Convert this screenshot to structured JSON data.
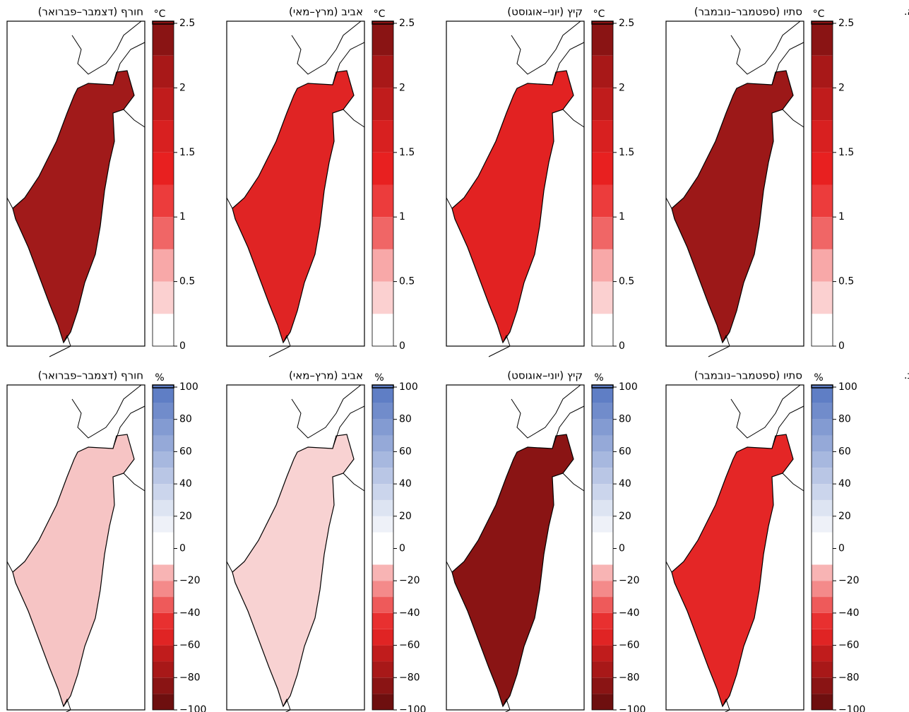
{
  "rows": [
    {
      "label": "א.",
      "unit": "°C",
      "scale": {
        "lim": [
          0,
          2.5
        ],
        "ticks": [
          0,
          0.5,
          1,
          1.5,
          2,
          2.5
        ],
        "colors": [
          "#ffffff",
          "#fbd0d0",
          "#f8a8a8",
          "#f06666",
          "#ec3c3c",
          "#e82020",
          "#d82020",
          "#c01c1c",
          "#a81818",
          "#8a1414"
        ]
      },
      "panels": [
        {
          "title": "חורף (דצמבר–פברואר)",
          "fill": "#a11a1a"
        },
        {
          "title": "אביב (מרץ–מאי)",
          "fill": "#e02424"
        },
        {
          "title": "קיץ (יוני–אוגוסט)",
          "fill": "#e22222"
        },
        {
          "title": "סתיו (ספטמבר–נובמבר)",
          "fill": "#9c1818"
        }
      ]
    },
    {
      "label": "ב.",
      "unit": "%",
      "scale": {
        "lim": [
          -100,
          100
        ],
        "ticks": [
          {
            "value": -100,
            "label": "−100"
          },
          {
            "value": -80,
            "label": "−80"
          },
          {
            "value": -60,
            "label": "−60"
          },
          {
            "value": -40,
            "label": "−40"
          },
          {
            "value": -20,
            "label": "−20"
          },
          0,
          20,
          40,
          60,
          80,
          100
        ],
        "colors": [
          "#6e0f0f",
          "#8a1414",
          "#a81818",
          "#c01c1c",
          "#e02424",
          "#e83030",
          "#ee5a5a",
          "#f48a8a",
          "#f8b4b4",
          "#ffffff",
          "#ffffff",
          "#eef1f8",
          "#dde4f2",
          "#cbd5ec",
          "#b9c6e5",
          "#a7b8df",
          "#95a9d8",
          "#839bd2",
          "#718ccb",
          "#5f7ec5"
        ]
      },
      "panels": [
        {
          "title": "חורף (דצמבר–פברואר)",
          "fill": "#f6c4c4"
        },
        {
          "title": "אביב (מרץ–מאי)",
          "fill": "#f8d2d2"
        },
        {
          "title": "קיץ (יוני–אוגוסט)",
          "fill": "#8a1414"
        },
        {
          "title": "סתיו (ספטמבר–נובמבר)",
          "fill": "#e42626"
        }
      ]
    }
  ]
}
